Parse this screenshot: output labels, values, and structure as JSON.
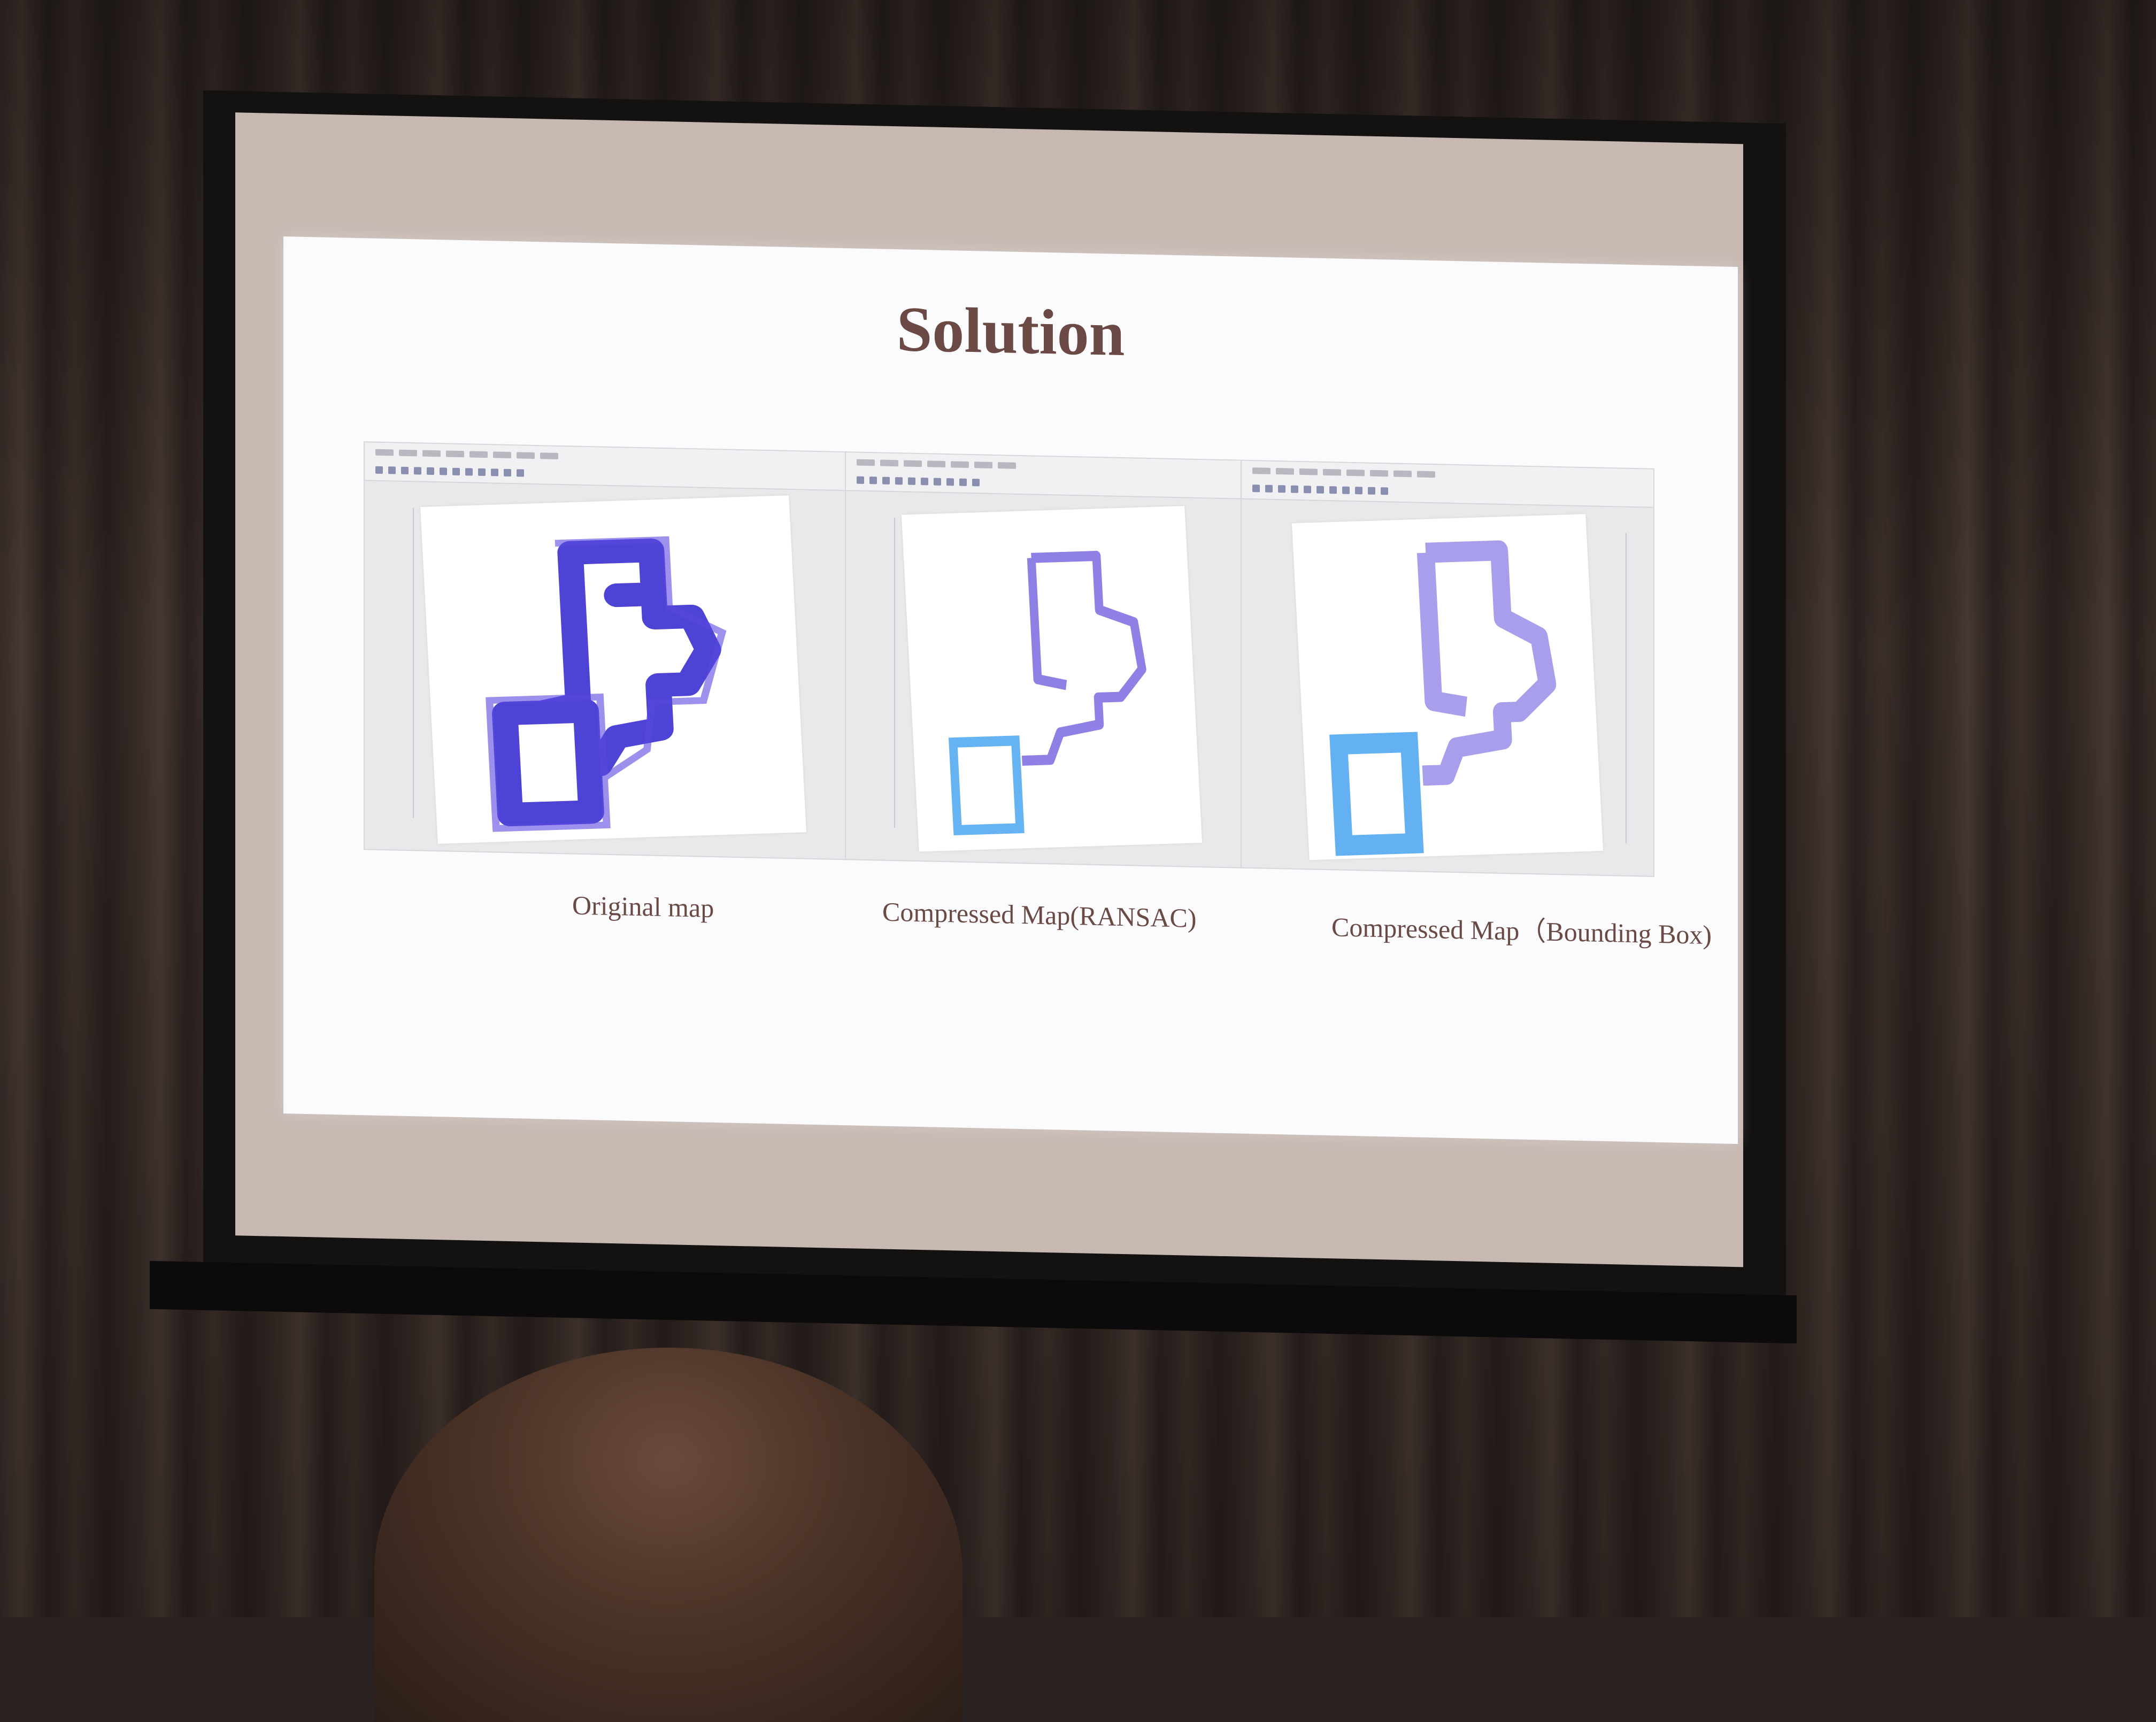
{
  "slide": {
    "title": "Solution"
  },
  "figures": [
    {
      "caption": "Original map",
      "map_color": "#3a2fd0",
      "secondary_color": "#5a48e0"
    },
    {
      "caption": "Compressed Map(RANSAC)",
      "map_color": "#7a6ae0",
      "secondary_color": "#4aa6f0"
    },
    {
      "caption": "Compressed Map（Bounding Box)",
      "map_color": "#8a7ee6",
      "secondary_color": "#3c9ef0"
    }
  ]
}
